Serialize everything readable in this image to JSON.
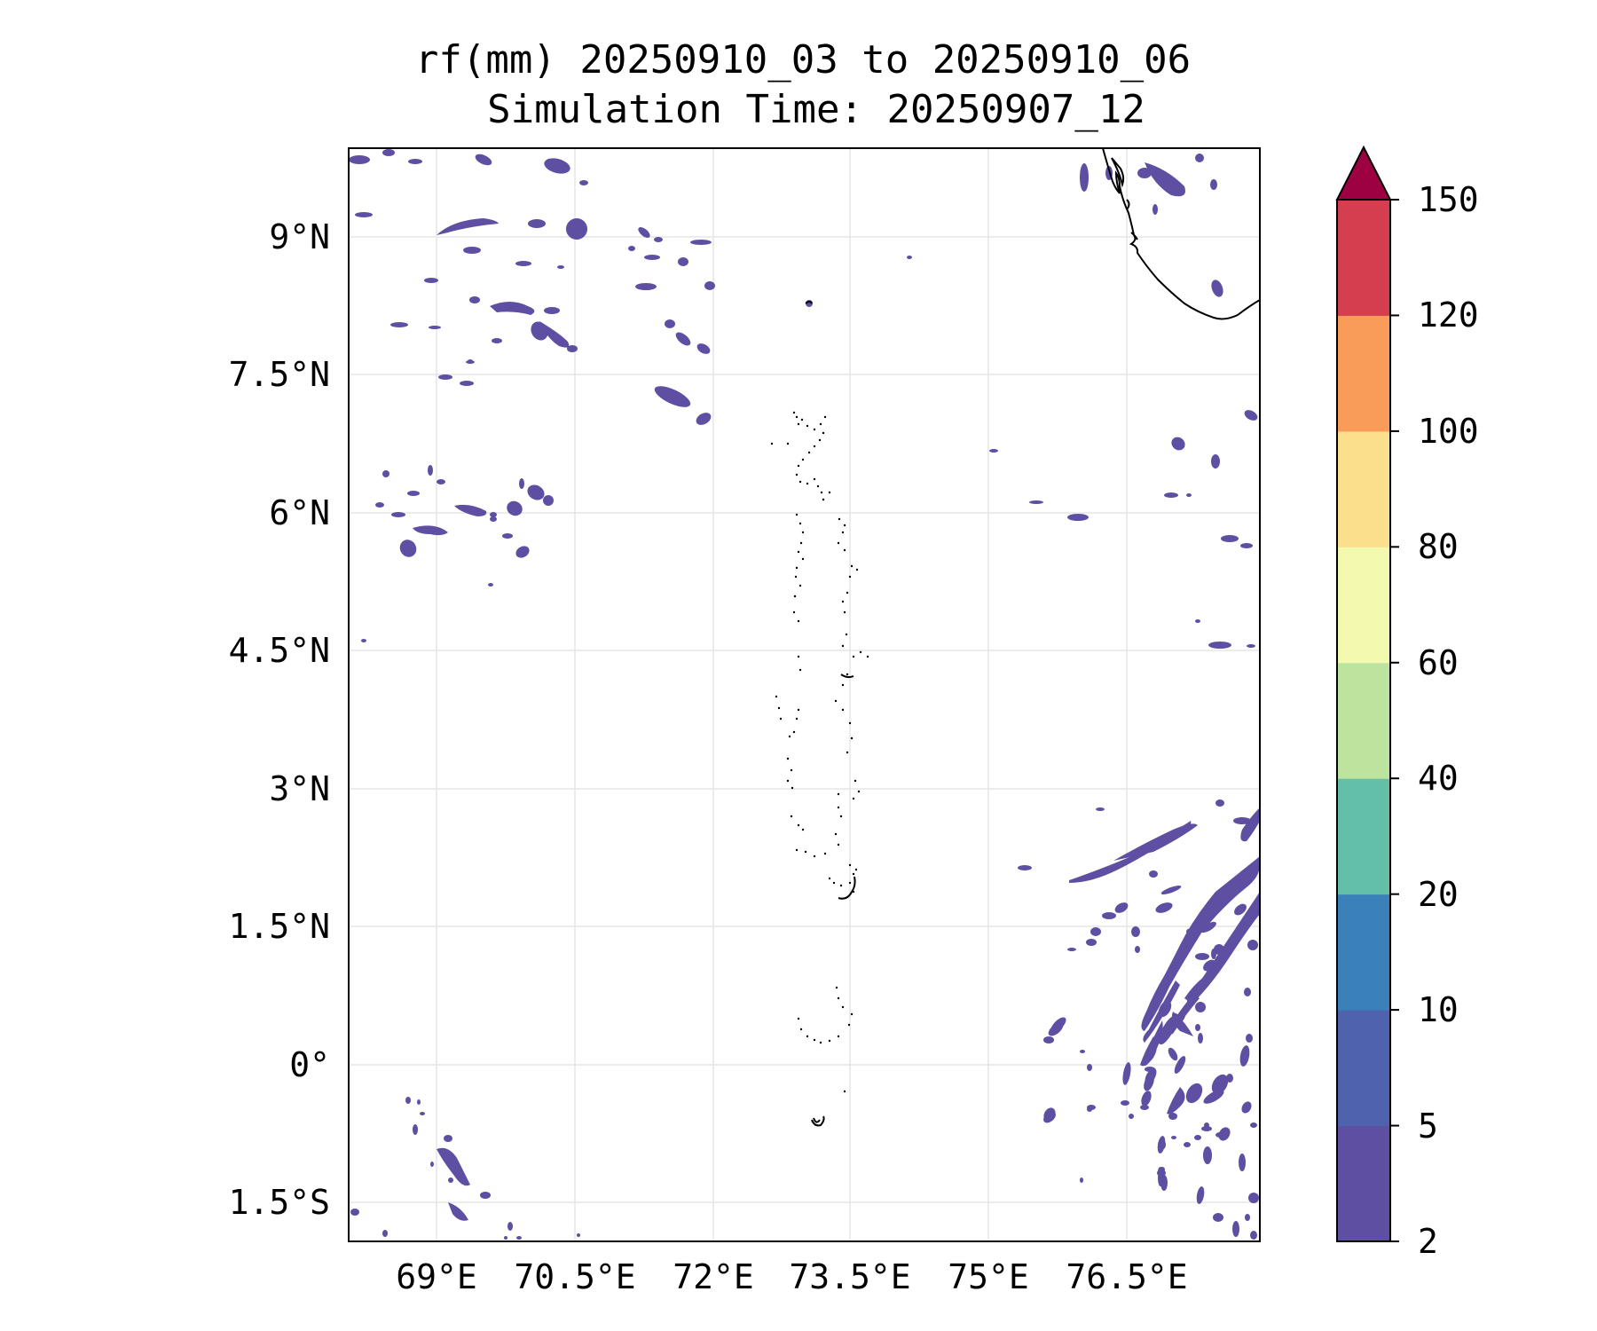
{
  "title": {
    "line1": "rf(mm) 20250910_03 to 20250910_06",
    "line2": "Simulation Time: 20250907_12"
  },
  "map": {
    "lon_ticks": [
      "69°E",
      "70.5°E",
      "72°E",
      "73.5°E",
      "75°E",
      "76.5°E"
    ],
    "lat_ticks": [
      "9°N",
      "7.5°N",
      "6°N",
      "4.5°N",
      "3°N",
      "1.5°N",
      "0°",
      "1.5°S"
    ],
    "grid": true,
    "field": "rainfall",
    "shown_color": "#5e4fa2"
  },
  "colorbar": {
    "labels": [
      "2",
      "5",
      "10",
      "20",
      "40",
      "60",
      "80",
      "100",
      "120",
      "150"
    ],
    "colors": [
      "#5e4fa2",
      "#4e62ad",
      "#3a80b9",
      "#64bfa8",
      "#bde49f",
      "#f3faaf",
      "#fbdf8d",
      "#f99c5a",
      "#d53e4f"
    ],
    "extend_color": "#9e0142",
    "extend": "max"
  }
}
